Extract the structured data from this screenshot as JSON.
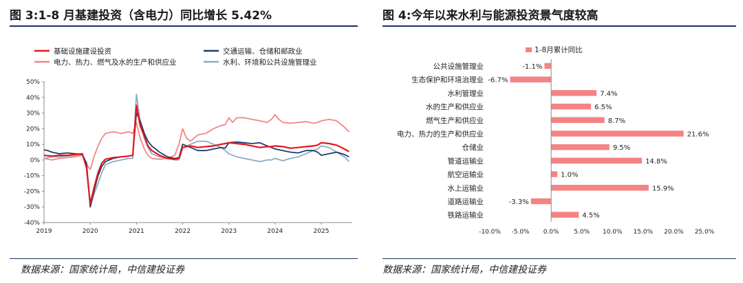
{
  "left": {
    "title": "图 3:1-8 月基建投资（含电力）同比增长 5.42%",
    "source": "数据来源：国家统计局，中信建投证券"
  },
  "right": {
    "title": "图 4:今年以来水利与能源投资景气度较高",
    "source": "数据来源：国家统计局，中信建投证券"
  },
  "chart_data": [
    {
      "type": "line",
      "title": "",
      "xlabel": "",
      "ylabel": "",
      "ylim": [
        -40,
        50
      ],
      "y_ticks": [
        "50%",
        "40%",
        "30%",
        "20%",
        "10%",
        "0%",
        "-10%",
        "-20%",
        "-30%",
        "-40%"
      ],
      "y_tick_values": [
        50,
        40,
        30,
        20,
        10,
        0,
        -10,
        -20,
        -30,
        -40
      ],
      "x_ticks": [
        "2019",
        "2020",
        "2021",
        "2022",
        "2023",
        "2024",
        "2025"
      ],
      "x_tick_values": [
        2019.0,
        2020.0,
        2021.0,
        2022.0,
        2023.0,
        2024.0,
        2025.0
      ],
      "xlim": [
        2019.0,
        2025.67
      ],
      "grid": false,
      "legend_placement": "top",
      "series": [
        {
          "name": "基础设施建设投资",
          "color": "#e8141b",
          "width": 2.2,
          "points": [
            [
              2019.0,
              3
            ],
            [
              2019.17,
              2.5
            ],
            [
              2019.33,
              3
            ],
            [
              2019.5,
              3
            ],
            [
              2019.67,
              3.5
            ],
            [
              2019.83,
              4
            ],
            [
              2019.92,
              -5
            ],
            [
              2020.0,
              -28
            ],
            [
              2020.08,
              -18
            ],
            [
              2020.17,
              -8
            ],
            [
              2020.25,
              -2
            ],
            [
              2020.33,
              0.5
            ],
            [
              2020.5,
              1.5
            ],
            [
              2020.67,
              2
            ],
            [
              2020.83,
              2.5
            ],
            [
              2020.92,
              3
            ],
            [
              2021.0,
              35
            ],
            [
              2021.08,
              22
            ],
            [
              2021.17,
              15
            ],
            [
              2021.25,
              9
            ],
            [
              2021.33,
              6
            ],
            [
              2021.5,
              3
            ],
            [
              2021.67,
              1
            ],
            [
              2021.83,
              0.5
            ],
            [
              2021.92,
              1
            ],
            [
              2022.0,
              8
            ],
            [
              2022.17,
              9
            ],
            [
              2022.33,
              8
            ],
            [
              2022.5,
              8.5
            ],
            [
              2022.67,
              9
            ],
            [
              2022.83,
              10
            ],
            [
              2022.92,
              10.5
            ],
            [
              2023.0,
              11
            ],
            [
              2023.17,
              10.5
            ],
            [
              2023.33,
              10
            ],
            [
              2023.5,
              9
            ],
            [
              2023.67,
              8
            ],
            [
              2023.83,
              8.5
            ],
            [
              2023.92,
              8.5
            ],
            [
              2024.0,
              9
            ],
            [
              2024.17,
              8.5
            ],
            [
              2024.33,
              7.5
            ],
            [
              2024.5,
              8
            ],
            [
              2024.67,
              8.5
            ],
            [
              2024.83,
              9
            ],
            [
              2024.92,
              9.5
            ],
            [
              2025.0,
              11
            ],
            [
              2025.17,
              10.5
            ],
            [
              2025.33,
              9.5
            ],
            [
              2025.5,
              7
            ],
            [
              2025.6,
              5.4
            ]
          ]
        },
        {
          "name": "交通运输、仓储和邮政业",
          "color": "#1b3d6e",
          "width": 1.8,
          "points": [
            [
              2019.0,
              6.5
            ],
            [
              2019.08,
              6
            ],
            [
              2019.17,
              5
            ],
            [
              2019.33,
              4
            ],
            [
              2019.5,
              4.5
            ],
            [
              2019.67,
              4
            ],
            [
              2019.83,
              3.5
            ],
            [
              2019.92,
              -2
            ],
            [
              2020.0,
              -30
            ],
            [
              2020.08,
              -20
            ],
            [
              2020.17,
              -10
            ],
            [
              2020.25,
              -4
            ],
            [
              2020.33,
              -1
            ],
            [
              2020.5,
              1
            ],
            [
              2020.67,
              2
            ],
            [
              2020.83,
              2.5
            ],
            [
              2020.92,
              3
            ],
            [
              2021.0,
              30
            ],
            [
              2021.08,
              25
            ],
            [
              2021.17,
              17
            ],
            [
              2021.25,
              12
            ],
            [
              2021.33,
              9
            ],
            [
              2021.5,
              5
            ],
            [
              2021.67,
              2
            ],
            [
              2021.83,
              1
            ],
            [
              2021.92,
              1.5
            ],
            [
              2022.0,
              10
            ],
            [
              2022.17,
              8
            ],
            [
              2022.33,
              6
            ],
            [
              2022.5,
              6
            ],
            [
              2022.67,
              7
            ],
            [
              2022.83,
              8
            ],
            [
              2022.92,
              7.5
            ],
            [
              2023.0,
              11
            ],
            [
              2023.17,
              11.5
            ],
            [
              2023.33,
              11
            ],
            [
              2023.5,
              10.5
            ],
            [
              2023.67,
              11
            ],
            [
              2023.83,
              9
            ],
            [
              2023.92,
              8
            ],
            [
              2024.0,
              7
            ],
            [
              2024.17,
              6
            ],
            [
              2024.33,
              5
            ],
            [
              2024.5,
              4.5
            ],
            [
              2024.67,
              6
            ],
            [
              2024.83,
              6
            ],
            [
              2024.92,
              5
            ],
            [
              2025.0,
              3
            ],
            [
              2025.17,
              4
            ],
            [
              2025.33,
              5
            ],
            [
              2025.5,
              3.5
            ],
            [
              2025.6,
              2
            ]
          ]
        },
        {
          "name": "电力、热力、燃气及水的生产和供应业",
          "color": "#f48484",
          "width": 1.8,
          "points": [
            [
              2019.0,
              1
            ],
            [
              2019.17,
              0
            ],
            [
              2019.33,
              1
            ],
            [
              2019.5,
              1.5
            ],
            [
              2019.67,
              2
            ],
            [
              2019.83,
              3
            ],
            [
              2019.92,
              -3
            ],
            [
              2020.0,
              -6
            ],
            [
              2020.08,
              2
            ],
            [
              2020.17,
              9
            ],
            [
              2020.25,
              14
            ],
            [
              2020.33,
              17
            ],
            [
              2020.5,
              18
            ],
            [
              2020.67,
              17
            ],
            [
              2020.83,
              18
            ],
            [
              2020.92,
              17
            ],
            [
              2021.0,
              24
            ],
            [
              2021.08,
              14
            ],
            [
              2021.17,
              7
            ],
            [
              2021.25,
              3
            ],
            [
              2021.33,
              1
            ],
            [
              2021.5,
              0.5
            ],
            [
              2021.67,
              1
            ],
            [
              2021.83,
              3
            ],
            [
              2021.92,
              10
            ],
            [
              2022.0,
              20
            ],
            [
              2022.08,
              14
            ],
            [
              2022.17,
              12
            ],
            [
              2022.33,
              16
            ],
            [
              2022.5,
              17
            ],
            [
              2022.67,
              20
            ],
            [
              2022.83,
              22
            ],
            [
              2022.92,
              22.5
            ],
            [
              2023.0,
              27
            ],
            [
              2023.08,
              24
            ],
            [
              2023.17,
              27
            ],
            [
              2023.33,
              27
            ],
            [
              2023.5,
              26
            ],
            [
              2023.67,
              25
            ],
            [
              2023.83,
              24
            ],
            [
              2023.92,
              26
            ],
            [
              2024.0,
              29
            ],
            [
              2024.08,
              26
            ],
            [
              2024.17,
              24
            ],
            [
              2024.33,
              23.5
            ],
            [
              2024.5,
              24
            ],
            [
              2024.67,
              24.5
            ],
            [
              2024.83,
              23.5
            ],
            [
              2024.92,
              24
            ],
            [
              2025.0,
              25
            ],
            [
              2025.17,
              26
            ],
            [
              2025.33,
              25
            ],
            [
              2025.5,
              21
            ],
            [
              2025.6,
              18
            ]
          ]
        },
        {
          "name": "水利、环境和公共设施管理业",
          "color": "#8ea9c1",
          "width": 1.8,
          "points": [
            [
              2019.0,
              1
            ],
            [
              2019.17,
              2
            ],
            [
              2019.33,
              2
            ],
            [
              2019.5,
              2.5
            ],
            [
              2019.67,
              3
            ],
            [
              2019.83,
              3.5
            ],
            [
              2019.92,
              -5
            ],
            [
              2020.0,
              -30
            ],
            [
              2020.08,
              -22
            ],
            [
              2020.17,
              -15
            ],
            [
              2020.25,
              -8
            ],
            [
              2020.33,
              -3
            ],
            [
              2020.5,
              -1
            ],
            [
              2020.67,
              0
            ],
            [
              2020.83,
              1
            ],
            [
              2020.92,
              1
            ],
            [
              2021.0,
              42
            ],
            [
              2021.08,
              25
            ],
            [
              2021.17,
              14
            ],
            [
              2021.25,
              8
            ],
            [
              2021.33,
              4
            ],
            [
              2021.5,
              2
            ],
            [
              2021.67,
              1
            ],
            [
              2021.83,
              0
            ],
            [
              2021.92,
              0
            ],
            [
              2022.0,
              8
            ],
            [
              2022.17,
              10
            ],
            [
              2022.33,
              12
            ],
            [
              2022.5,
              12
            ],
            [
              2022.67,
              10
            ],
            [
              2022.83,
              8
            ],
            [
              2022.92,
              6
            ],
            [
              2023.0,
              4
            ],
            [
              2023.17,
              2
            ],
            [
              2023.33,
              1
            ],
            [
              2023.5,
              0
            ],
            [
              2023.67,
              -1
            ],
            [
              2023.83,
              0
            ],
            [
              2023.92,
              0
            ],
            [
              2024.0,
              1
            ],
            [
              2024.17,
              -0.5
            ],
            [
              2024.33,
              1
            ],
            [
              2024.5,
              2
            ],
            [
              2024.67,
              4
            ],
            [
              2024.83,
              6
            ],
            [
              2024.92,
              7
            ],
            [
              2025.0,
              9
            ],
            [
              2025.17,
              8
            ],
            [
              2025.33,
              5
            ],
            [
              2025.5,
              2
            ],
            [
              2025.6,
              -1
            ]
          ]
        }
      ]
    },
    {
      "type": "bar",
      "orientation": "horizontal",
      "title": "",
      "xlabel": "",
      "ylabel": "",
      "xlim": [
        -10,
        25
      ],
      "x_ticks": [
        "-10.0%",
        "-5.0%",
        "0.0%",
        "5.0%",
        "10.0%",
        "15.0%",
        "20.0%",
        "25.0%"
      ],
      "x_tick_values": [
        -10,
        -5,
        0,
        5,
        10,
        15,
        20,
        25
      ],
      "grid": false,
      "legend_placement": "top",
      "series_name": "1-8月累计同比",
      "bar_color": "#f48484",
      "categories": [
        "公共设施管理业",
        "生态保护和环境治理业",
        "水利管理业",
        "水的生产和供应业",
        "燃气生产和供应业",
        "电力、热力的生产和供应业",
        "仓储业",
        "管道运输业",
        "航空运输业",
        "水上运输业",
        "道路运输业",
        "铁路运输业"
      ],
      "values": [
        -1.1,
        -6.7,
        7.4,
        6.5,
        8.7,
        21.6,
        9.5,
        14.8,
        1.0,
        15.9,
        -3.3,
        4.5
      ],
      "labels": [
        "-1.1%",
        "-6.7%",
        "7.4%",
        "6.5%",
        "8.7%",
        "21.6%",
        "9.5%",
        "14.8%",
        "1.0%",
        "15.9%",
        "-3.3%",
        "4.5%"
      ]
    }
  ]
}
